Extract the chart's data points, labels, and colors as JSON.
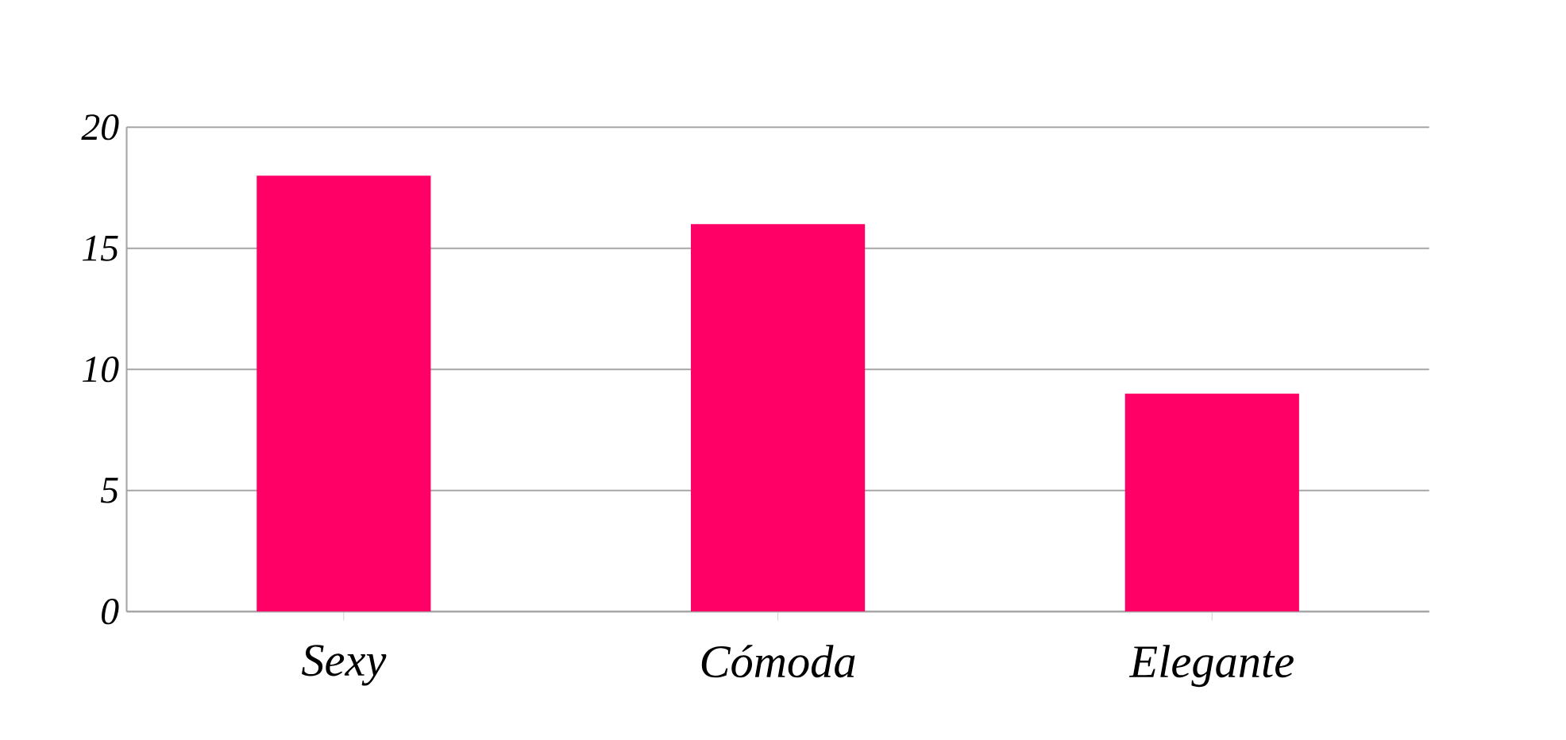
{
  "chart_data": {
    "type": "bar",
    "categories": [
      "Sexy",
      "Cómoda",
      "Elegante"
    ],
    "values": [
      18,
      16,
      9
    ],
    "color": "#ff0066",
    "ylim": [
      0,
      20
    ],
    "yticks": [
      0,
      5,
      10,
      15,
      20
    ],
    "grid": "y"
  }
}
